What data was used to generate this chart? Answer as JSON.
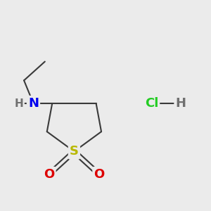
{
  "bg_color": "#ebebeb",
  "bond_color": "#3a3a3a",
  "bond_width": 1.5,
  "atom_colors": {
    "N": "#0000ee",
    "S": "#b8b800",
    "O": "#dd0000",
    "Cl": "#22cc22",
    "H": "#707070",
    "C": "#3a3a3a"
  },
  "figsize": [
    3.0,
    3.0
  ],
  "dpi": 100
}
